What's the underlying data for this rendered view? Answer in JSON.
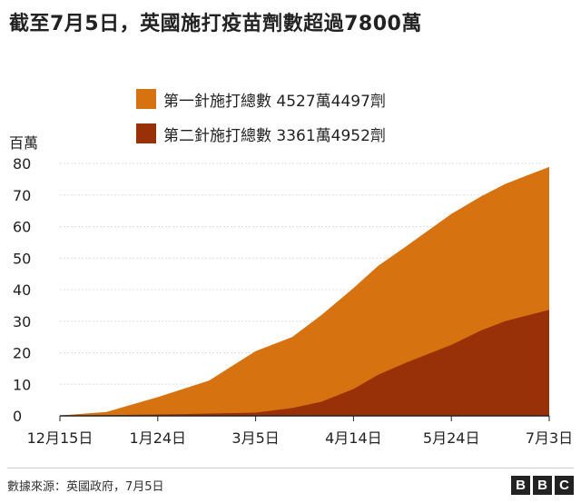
{
  "title": "截至7月5日，英國施打疫苗劑數超過7800萬",
  "unit_label": "百萬",
  "legend": [
    {
      "label": "第一針施打總數 4527萬4497劑",
      "color": "#d6720f"
    },
    {
      "label": "第二針施打總數 3361萬4952劑",
      "color": "#983008"
    }
  ],
  "source": "數據來源：英國政府，7月5日",
  "brand": [
    "B",
    "B",
    "C"
  ],
  "colors": {
    "first_dose": "#d6720f",
    "second_dose": "#983008",
    "grid": "#dddddd",
    "axis": "#222222"
  },
  "chart_data": {
    "type": "area",
    "stacked": true,
    "x_ticks": [
      "12月15日",
      "1月24日",
      "3月5日",
      "4月14日",
      "5月24日",
      "7月3日"
    ],
    "xlim": [
      "2020-12-15",
      "2021-07-03"
    ],
    "y_ticks": [
      "0",
      "10",
      "20",
      "30",
      "40",
      "50",
      "60",
      "70",
      "80"
    ],
    "ylim": [
      0,
      80
    ],
    "grid": true,
    "series": [
      {
        "name": "第二針施打總數 3361萬4952劑",
        "color": "#983008",
        "x": [
          "2020-12-15",
          "2021-01-10",
          "2021-02-01",
          "2021-03-05",
          "2021-03-20",
          "2021-04-01",
          "2021-04-14",
          "2021-04-24",
          "2021-05-06",
          "2021-05-24",
          "2021-06-05",
          "2021-06-15",
          "2021-06-25",
          "2021-07-03"
        ],
        "y": [
          0,
          0.3,
          0.5,
          1.0,
          2.5,
          4.5,
          8.5,
          13,
          17,
          22.5,
          27,
          30,
          32,
          33.6
        ]
      },
      {
        "name": "第一針施打總數 4527萬4497劑",
        "color": "#d6720f",
        "x": [
          "2020-12-15",
          "2021-01-03",
          "2021-01-24",
          "2021-02-14",
          "2021-03-05",
          "2021-03-20",
          "2021-04-01",
          "2021-04-14",
          "2021-04-24",
          "2021-05-06",
          "2021-05-24",
          "2021-06-05",
          "2021-06-15",
          "2021-06-25",
          "2021-07-03"
        ],
        "y": [
          0.1,
          1.0,
          5.5,
          10.5,
          19.5,
          22.5,
          27.5,
          32,
          34.5,
          37,
          41.5,
          42.5,
          43.5,
          44.5,
          45.3
        ]
      }
    ]
  }
}
